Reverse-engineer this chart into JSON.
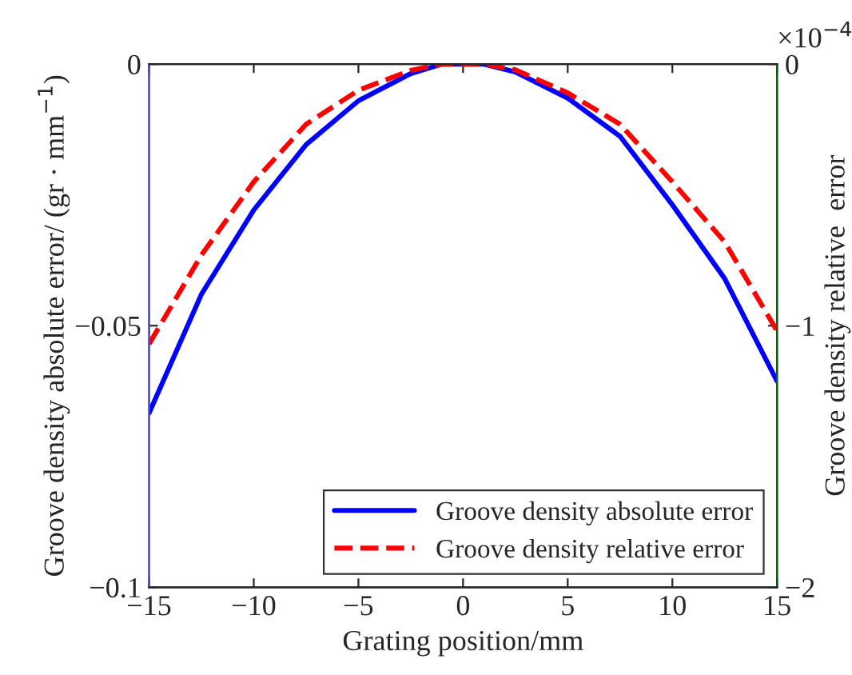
{
  "chart_data": {
    "type": "line",
    "xlabel": "Grating position/mm",
    "ylabel": "Groove density absolute error/ (gr · mm$^{−1}$)",
    "y2label": "Groove density relative  error",
    "series": [
      {
        "name": "Groove density absolute error",
        "color": "#0000ff",
        "line_style": "solid",
        "x": [
          -15,
          -12.5,
          -10,
          -7.5,
          -5,
          -2.5,
          -1,
          1,
          2.5,
          5,
          7.5,
          10,
          12.5,
          15
        ],
        "values": [
          -0.0667,
          -0.044,
          -0.0279,
          -0.0154,
          -0.007,
          -0.0018,
          0,
          0,
          -0.0015,
          -0.0065,
          -0.0138,
          -0.0269,
          -0.041,
          -0.0606
        ]
      },
      {
        "name": "Groove density relative error",
        "color": "#ff0000",
        "line_style": "dashed",
        "axis": "y2",
        "x": [
          -15,
          -12.5,
          -10,
          -7.5,
          -5,
          -2.5,
          -1,
          1,
          2.5,
          5,
          7.5,
          10,
          12.5,
          15
        ],
        "values": [
          -1.07,
          -0.73,
          -0.45,
          -0.23,
          -0.1,
          -0.024,
          0,
          0,
          -0.022,
          -0.11,
          -0.23,
          -0.45,
          -0.68,
          -1.02
        ]
      }
    ],
    "xlim": [
      -15,
      15
    ],
    "xticks": [
      {
        "value": -15,
        "label": "−15"
      },
      {
        "value": -10,
        "label": "−10"
      },
      {
        "value": -5,
        "label": "−5"
      },
      0,
      5,
      10,
      15
    ],
    "ylim": [
      -0.1,
      0
    ],
    "yticks": [
      {
        "value": -0.1,
        "label": "−0.1"
      },
      {
        "value": -0.05,
        "label": "−0.05"
      },
      0
    ],
    "y2lim": [
      -2,
      0
    ],
    "y2ticks": [
      {
        "value": -2,
        "label": "−2"
      },
      {
        "value": -1,
        "label": "−1"
      },
      0
    ],
    "annotations": [
      "×10$^{−4}$"
    ],
    "legend": "bottom right",
    "grid": false
  }
}
